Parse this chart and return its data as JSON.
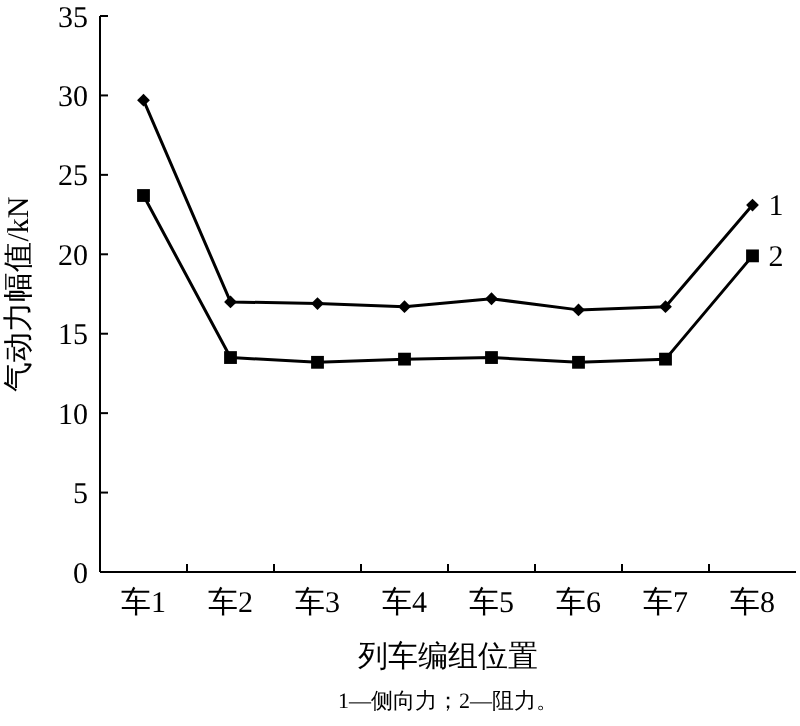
{
  "chart_data": {
    "type": "line",
    "xlabel": "列车编组位置",
    "ylabel": "气动力幅值/kN",
    "categories": [
      "车1",
      "车2",
      "车3",
      "车4",
      "车5",
      "车6",
      "车7",
      "车8"
    ],
    "series": [
      {
        "name": "1",
        "color": "#000000",
        "marker": "diamond",
        "values": [
          29.7,
          17.0,
          16.9,
          16.7,
          17.2,
          16.5,
          16.7,
          23.1
        ]
      },
      {
        "name": "2",
        "color": "#000000",
        "marker": "square",
        "values": [
          23.7,
          13.5,
          13.2,
          13.4,
          13.5,
          13.2,
          13.4,
          19.9
        ]
      }
    ],
    "ylim": [
      0,
      35
    ],
    "yticks": [
      0,
      5,
      10,
      15,
      20,
      25,
      30,
      35
    ],
    "grid": false,
    "line_style": "solid",
    "annotations": [
      "1—侧向力；2—阻力。"
    ]
  }
}
